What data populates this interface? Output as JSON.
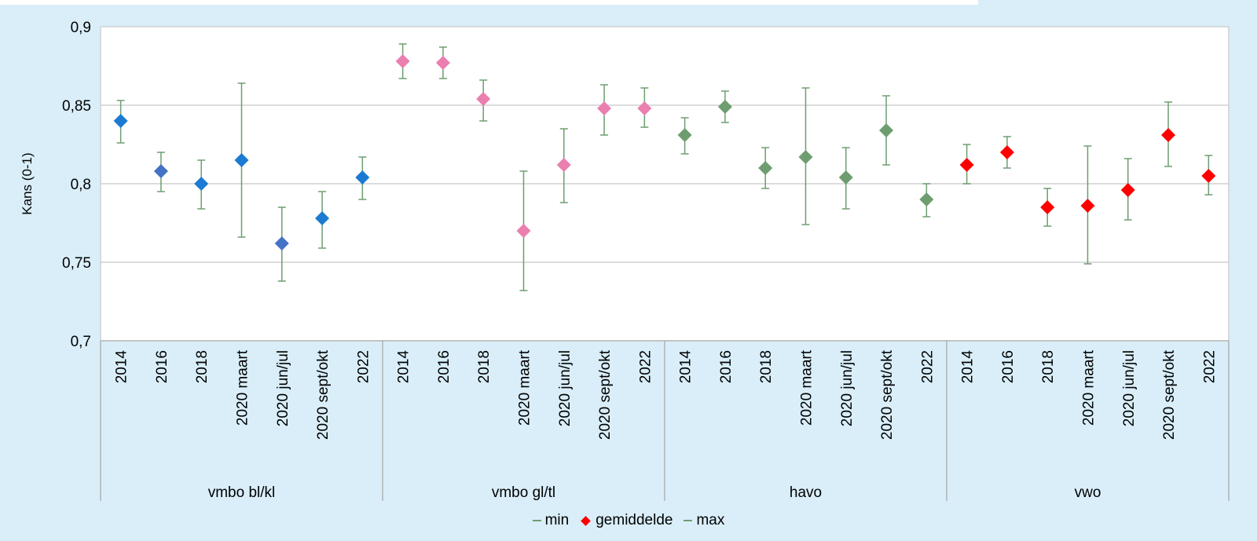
{
  "chart_data": {
    "type": "scatter",
    "title": "",
    "xlabel": "",
    "ylabel": "Kans (0-1)",
    "ylim": [
      0.7,
      0.9
    ],
    "yticks": [
      "0,9",
      "0,85",
      "0,8",
      "0,75",
      "0,7"
    ],
    "grid": true,
    "legend_position": "bottom",
    "legend": [
      {
        "label": "min",
        "marker": "line",
        "color": "#6e9e70"
      },
      {
        "label": "gemiddelde",
        "marker": "diamond",
        "color": "#ff0000"
      },
      {
        "label": "max",
        "marker": "line",
        "color": "#6e9e70"
      }
    ],
    "groups": [
      {
        "name": "vmbo bl/kl",
        "categories": [
          "2014",
          "2016",
          "2018",
          "2020 maart",
          "2020 jun/jul",
          "2020 sept/okt",
          "2022"
        ],
        "mean": [
          0.84,
          0.808,
          0.8,
          0.815,
          0.762,
          0.778,
          0.804
        ],
        "min": [
          0.826,
          0.795,
          0.784,
          0.766,
          0.738,
          0.759,
          0.79
        ],
        "max": [
          0.853,
          0.82,
          0.815,
          0.864,
          0.785,
          0.795,
          0.817
        ],
        "colors": [
          "#1b7bd2",
          "#4472c4",
          "#1b7bd2",
          "#1b7bd2",
          "#4472c4",
          "#1b7bd2",
          "#1b7bd2"
        ]
      },
      {
        "name": "vmbo gl/tl",
        "categories": [
          "2014",
          "2016",
          "2018",
          "2020 maart",
          "2020 jun/jul",
          "2020 sept/okt",
          "2022"
        ],
        "mean": [
          0.878,
          0.877,
          0.854,
          0.77,
          0.812,
          0.848,
          0.848
        ],
        "min": [
          0.867,
          0.867,
          0.84,
          0.732,
          0.788,
          0.831,
          0.836
        ],
        "max": [
          0.889,
          0.887,
          0.866,
          0.808,
          0.835,
          0.863,
          0.861
        ],
        "colors": [
          "#ea7fb0",
          "#ea7fb0",
          "#ea7fb0",
          "#ea7fb0",
          "#ea7fb0",
          "#ea7fb0",
          "#ea7fb0"
        ]
      },
      {
        "name": "havo",
        "categories": [
          "2014",
          "2016",
          "2018",
          "2020 maart",
          "2020 jun/jul",
          "2020 sept/okt",
          "2022"
        ],
        "mean": [
          0.831,
          0.849,
          0.81,
          0.817,
          0.804,
          0.834,
          0.79
        ],
        "min": [
          0.819,
          0.839,
          0.797,
          0.774,
          0.784,
          0.812,
          0.779
        ],
        "max": [
          0.842,
          0.859,
          0.823,
          0.861,
          0.823,
          0.856,
          0.8
        ],
        "colors": [
          "#6e9e70",
          "#6e9e70",
          "#6e9e70",
          "#6e9e70",
          "#6e9e70",
          "#6e9e70",
          "#6e9e70"
        ]
      },
      {
        "name": "vwo",
        "categories": [
          "2014",
          "2016",
          "2018",
          "2020 maart",
          "2020 jun/jul",
          "2020 sept/okt",
          "2022"
        ],
        "mean": [
          0.812,
          0.82,
          0.785,
          0.786,
          0.796,
          0.831,
          0.805
        ],
        "min": [
          0.8,
          0.81,
          0.773,
          0.749,
          0.777,
          0.811,
          0.793
        ],
        "max": [
          0.825,
          0.83,
          0.797,
          0.824,
          0.816,
          0.852,
          0.818
        ],
        "colors": [
          "#ff0000",
          "#ff0000",
          "#ff0000",
          "#ff0000",
          "#ff0000",
          "#ff0000",
          "#ff0000"
        ]
      }
    ],
    "errorbar_color": "#6e9e70"
  }
}
